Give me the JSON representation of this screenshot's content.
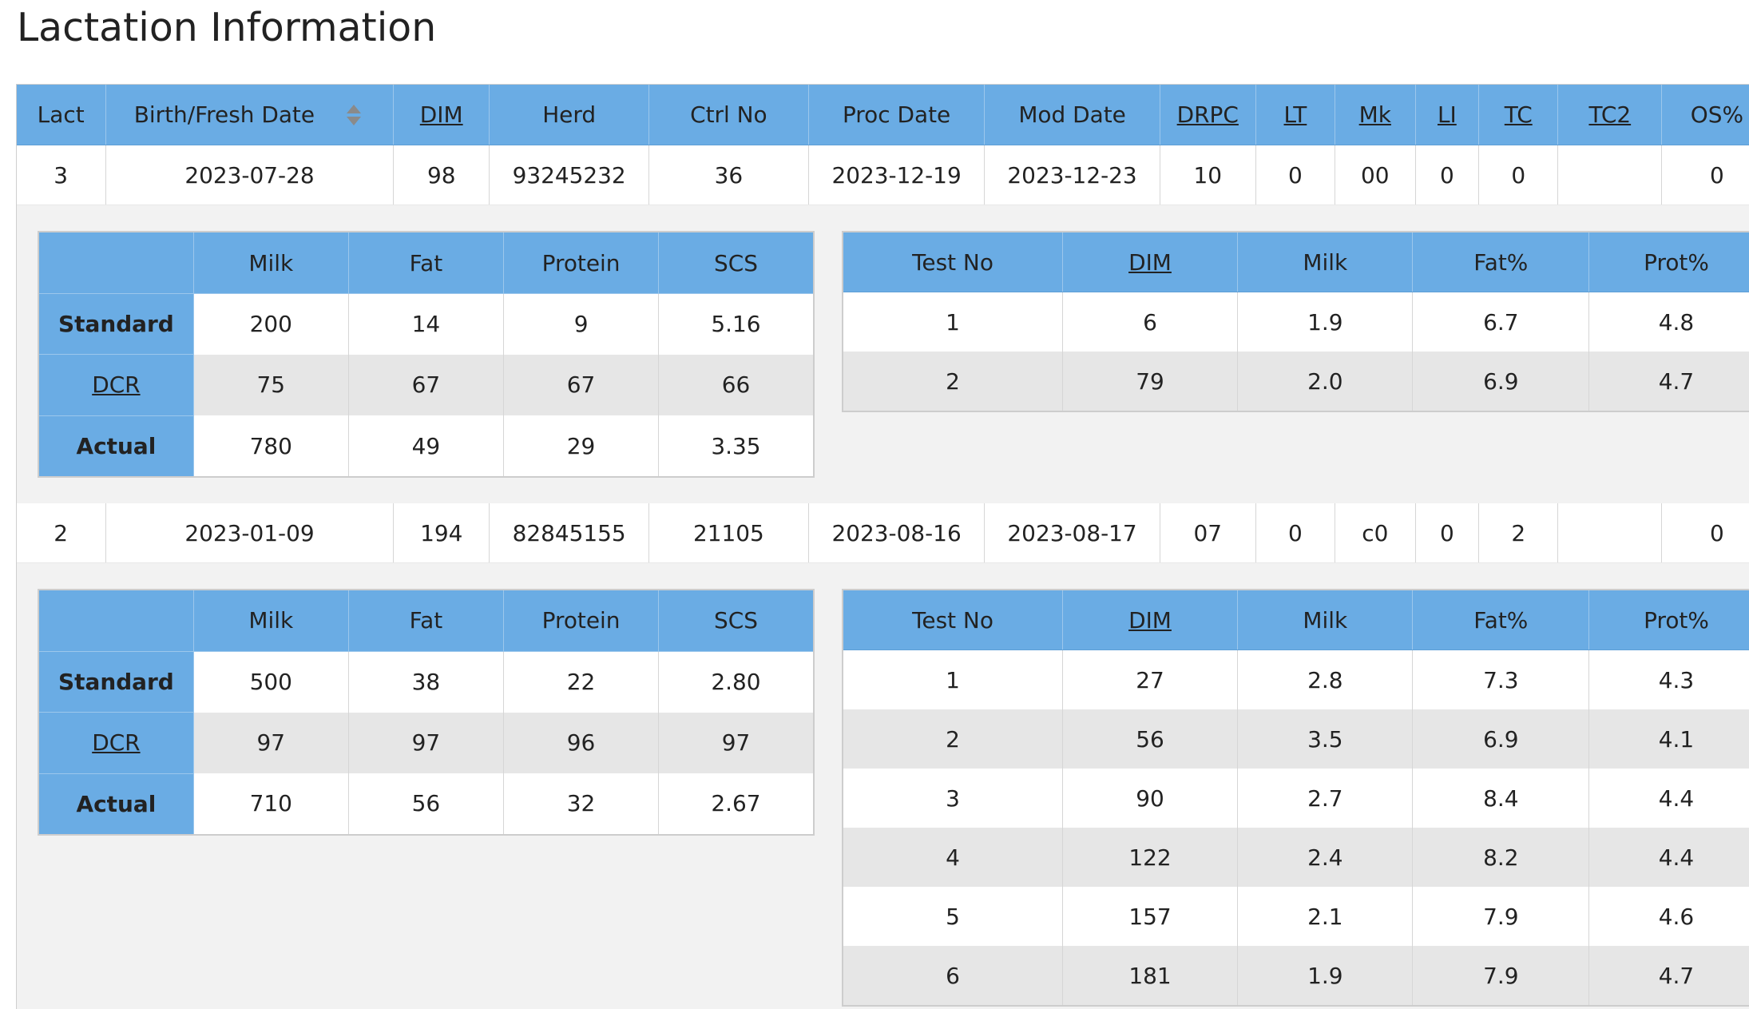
{
  "page_title": "Lactation Information",
  "main_columns": [
    "Lact",
    "Birth/Fresh Date",
    "DIM",
    "Herd",
    "Ctrl No",
    "Proc Date",
    "Mod Date",
    "DRPC",
    "LT",
    "Mk",
    "LI",
    "TC",
    "TC2",
    "OS%"
  ],
  "lactations": [
    {
      "row": [
        "3",
        "2023-07-28",
        "98",
        "93245232",
        "36",
        "2023-12-19",
        "2023-12-23",
        "10",
        "0",
        "00",
        "0",
        "0",
        "",
        "0"
      ],
      "summary": {
        "headers": [
          "",
          "Milk",
          "Fat",
          "Protein",
          "SCS"
        ],
        "rows": [
          {
            "label": "Standard",
            "values": [
              "200",
              "14",
              "9",
              "5.16"
            ]
          },
          {
            "label": "DCR",
            "values": [
              "75",
              "67",
              "67",
              "66"
            ]
          },
          {
            "label": "Actual",
            "values": [
              "780",
              "49",
              "29",
              "3.35"
            ]
          }
        ]
      },
      "tests": {
        "headers": [
          "Test No",
          "DIM",
          "Milk",
          "Fat%",
          "Prot%"
        ],
        "rows": [
          [
            "1",
            "6",
            "1.9",
            "6.7",
            "4.8"
          ],
          [
            "2",
            "79",
            "2.0",
            "6.9",
            "4.7"
          ]
        ]
      }
    },
    {
      "row": [
        "2",
        "2023-01-09",
        "194",
        "82845155",
        "21105",
        "2023-08-16",
        "2023-08-17",
        "07",
        "0",
        "c0",
        "0",
        "2",
        "",
        "0"
      ],
      "summary": {
        "headers": [
          "",
          "Milk",
          "Fat",
          "Protein",
          "SCS"
        ],
        "rows": [
          {
            "label": "Standard",
            "values": [
              "500",
              "38",
              "22",
              "2.80"
            ]
          },
          {
            "label": "DCR",
            "values": [
              "97",
              "97",
              "96",
              "97"
            ]
          },
          {
            "label": "Actual",
            "values": [
              "710",
              "56",
              "32",
              "2.67"
            ]
          }
        ]
      },
      "tests": {
        "headers": [
          "Test No",
          "DIM",
          "Milk",
          "Fat%",
          "Prot%"
        ],
        "rows": [
          [
            "1",
            "27",
            "2.8",
            "7.3",
            "4.3"
          ],
          [
            "2",
            "56",
            "3.5",
            "6.9",
            "4.1"
          ],
          [
            "3",
            "90",
            "2.7",
            "8.4",
            "4.4"
          ],
          [
            "4",
            "122",
            "2.4",
            "8.2",
            "4.4"
          ],
          [
            "5",
            "157",
            "2.1",
            "7.9",
            "4.6"
          ],
          [
            "6",
            "181",
            "1.9",
            "7.9",
            "4.7"
          ]
        ]
      }
    }
  ],
  "colors": {
    "header_blue": "#6aace4",
    "row_grey": "#e6e6e6",
    "panel_grey": "#f2f2f2"
  }
}
